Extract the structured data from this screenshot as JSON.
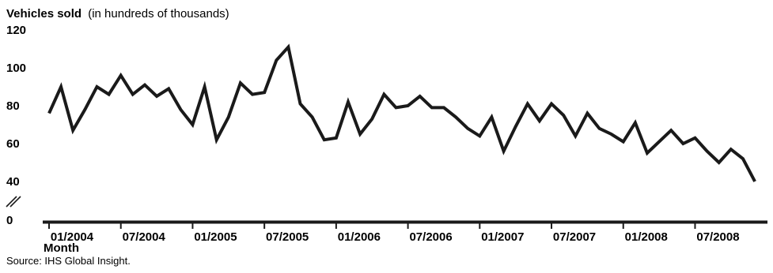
{
  "chart_data": {
    "type": "line",
    "title": "Vehicles sold",
    "subtitle": "(in hundreds of thousands)",
    "xlabel": "Month",
    "ylabel": "",
    "source": "Source: IHS Global Insight.",
    "ylim": [
      0,
      120
    ],
    "axis_break": "between 0 and 40",
    "y_ticks": [
      "0",
      "40",
      "60",
      "80",
      "100",
      "120"
    ],
    "x_tick_labels": [
      "01/2004",
      "07/2004",
      "01/2005",
      "07/2005",
      "01/2006",
      "07/2006",
      "01/2007",
      "07/2007",
      "01/2008",
      "07/2008"
    ],
    "grid": false,
    "line_color": "#1a1a1a",
    "x": [
      "01/2004",
      "02/2004",
      "03/2004",
      "04/2004",
      "05/2004",
      "06/2004",
      "07/2004",
      "08/2004",
      "09/2004",
      "10/2004",
      "11/2004",
      "12/2004",
      "01/2005",
      "02/2005",
      "03/2005",
      "04/2005",
      "05/2005",
      "06/2005",
      "07/2005",
      "08/2005",
      "09/2005",
      "10/2005",
      "11/2005",
      "12/2005",
      "01/2006",
      "02/2006",
      "03/2006",
      "04/2006",
      "05/2006",
      "06/2006",
      "07/2006",
      "08/2006",
      "09/2006",
      "10/2006",
      "11/2006",
      "12/2006",
      "01/2007",
      "02/2007",
      "03/2007",
      "04/2007",
      "05/2007",
      "06/2007",
      "07/2007",
      "08/2007",
      "09/2007",
      "10/2007",
      "11/2007",
      "12/2007",
      "01/2008",
      "02/2008",
      "03/2008",
      "04/2008",
      "05/2008",
      "06/2008",
      "07/2008",
      "08/2008",
      "09/2008",
      "10/2008",
      "11/2008",
      "12/2008"
    ],
    "values": [
      76,
      90,
      67,
      78,
      90,
      86,
      96,
      86,
      91,
      85,
      89,
      78,
      70,
      90,
      62,
      74,
      92,
      86,
      87,
      104,
      111,
      81,
      74,
      62,
      63,
      82,
      65,
      73,
      86,
      79,
      80,
      85,
      79,
      79,
      74,
      68,
      64,
      74,
      56,
      69,
      81,
      72,
      81,
      75,
      64,
      76,
      68,
      65,
      61,
      71,
      55,
      61,
      67,
      60,
      63,
      56,
      50,
      57,
      52,
      40
    ]
  }
}
